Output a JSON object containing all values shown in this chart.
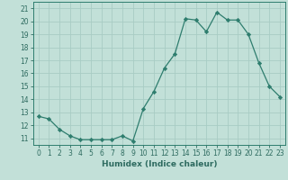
{
  "x": [
    0,
    1,
    2,
    3,
    4,
    5,
    6,
    7,
    8,
    9,
    10,
    11,
    12,
    13,
    14,
    15,
    16,
    17,
    18,
    19,
    20,
    21,
    22,
    23
  ],
  "y": [
    12.7,
    12.5,
    11.7,
    11.2,
    10.9,
    10.9,
    10.9,
    10.9,
    11.2,
    10.8,
    13.3,
    14.6,
    16.4,
    17.5,
    20.2,
    20.1,
    19.2,
    20.7,
    20.1,
    20.1,
    19.0,
    16.8,
    15.0,
    14.2
  ],
  "line_color": "#2e7d6e",
  "marker_color": "#2e7d6e",
  "bg_color": "#c2e0d8",
  "grid_color": "#a8ccc4",
  "xlabel": "Humidex (Indice chaleur)",
  "xlim": [
    -0.5,
    23.5
  ],
  "ylim": [
    10.5,
    21.5
  ],
  "yticks": [
    11,
    12,
    13,
    14,
    15,
    16,
    17,
    18,
    19,
    20,
    21
  ],
  "xticks": [
    0,
    1,
    2,
    3,
    4,
    5,
    6,
    7,
    8,
    9,
    10,
    11,
    12,
    13,
    14,
    15,
    16,
    17,
    18,
    19,
    20,
    21,
    22,
    23
  ],
  "xtick_labels": [
    "0",
    "1",
    "2",
    "3",
    "4",
    "5",
    "6",
    "7",
    "8",
    "9",
    "10",
    "11",
    "12",
    "13",
    "14",
    "15",
    "16",
    "17",
    "18",
    "19",
    "20",
    "21",
    "22",
    "23"
  ],
  "tick_color": "#2e6b60",
  "axis_color": "#2e7d6e",
  "label_fontsize": 6.5,
  "tick_fontsize": 5.5
}
